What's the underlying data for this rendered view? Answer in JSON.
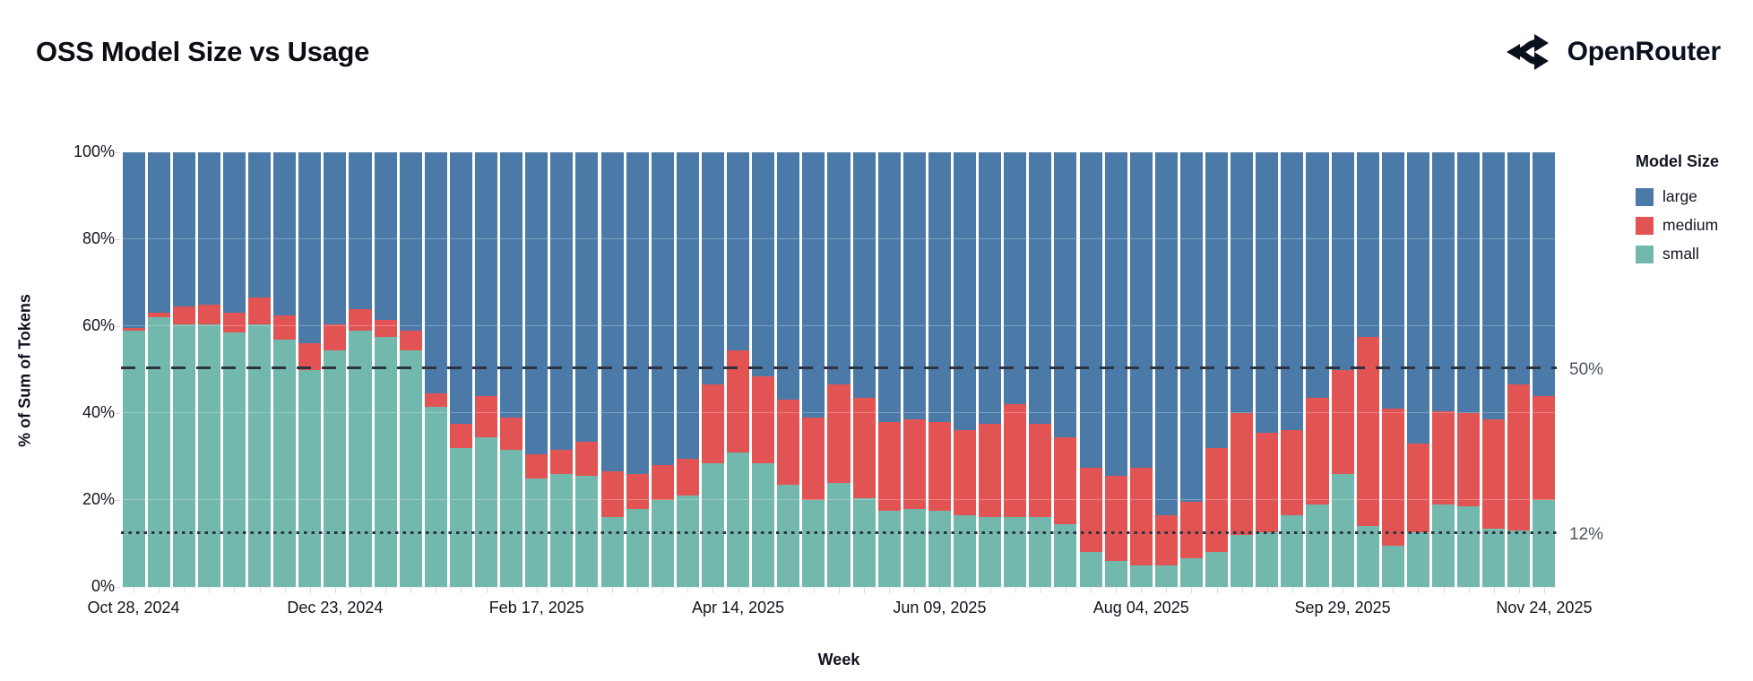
{
  "header": {
    "title": "OSS Model Size vs Usage",
    "brand": "OpenRouter",
    "brand_icon": "openrouter-fork-arrows-icon"
  },
  "chart_data": {
    "type": "bar",
    "stacked": true,
    "title": "OSS Model Size vs Usage",
    "xlabel": "Week",
    "ylabel": "% of Sum of Tokens",
    "ylim": [
      0,
      100
    ],
    "grid": "horizontal",
    "y_ticks": [
      "0%",
      "20%",
      "40%",
      "60%",
      "80%",
      "100%"
    ],
    "y_tick_values": [
      0,
      20,
      40,
      60,
      80,
      100
    ],
    "x_major_tick_indices": [
      0,
      8,
      16,
      24,
      32,
      40,
      48,
      56
    ],
    "x_major_tick_labels": [
      "Oct 28, 2024",
      "Dec 23, 2024",
      "Feb 17, 2025",
      "Apr 14, 2025",
      "Jun 09, 2025",
      "Aug 04, 2025",
      "Sep 29, 2025",
      "Nov 24, 2025"
    ],
    "legend_title": "Model Size",
    "legend_position": "right",
    "categories": [
      "Oct 28, 2024",
      "Nov 04, 2024",
      "Nov 11, 2024",
      "Nov 18, 2024",
      "Nov 25, 2024",
      "Dec 02, 2024",
      "Dec 09, 2024",
      "Dec 16, 2024",
      "Dec 23, 2024",
      "Dec 30, 2024",
      "Jan 06, 2025",
      "Jan 13, 2025",
      "Jan 20, 2025",
      "Jan 27, 2025",
      "Feb 03, 2025",
      "Feb 10, 2025",
      "Feb 17, 2025",
      "Feb 24, 2025",
      "Mar 03, 2025",
      "Mar 10, 2025",
      "Mar 17, 2025",
      "Mar 24, 2025",
      "Mar 31, 2025",
      "Apr 07, 2025",
      "Apr 14, 2025",
      "Apr 21, 2025",
      "Apr 28, 2025",
      "May 05, 2025",
      "May 12, 2025",
      "May 19, 2025",
      "May 26, 2025",
      "Jun 02, 2025",
      "Jun 09, 2025",
      "Jun 16, 2025",
      "Jun 23, 2025",
      "Jun 30, 2025",
      "Jul 07, 2025",
      "Jul 14, 2025",
      "Jul 21, 2025",
      "Jul 28, 2025",
      "Aug 04, 2025",
      "Aug 11, 2025",
      "Aug 18, 2025",
      "Aug 25, 2025",
      "Sep 01, 2025",
      "Sep 08, 2025",
      "Sep 15, 2025",
      "Sep 22, 2025",
      "Sep 29, 2025",
      "Oct 06, 2025",
      "Oct 13, 2025",
      "Oct 20, 2025",
      "Oct 27, 2025",
      "Nov 03, 2025",
      "Nov 10, 2025",
      "Nov 17, 2025",
      "Nov 24, 2025"
    ],
    "series": [
      {
        "name": "large",
        "color": "#4B7AA8",
        "values": [
          40.5,
          37,
          35.5,
          35,
          37,
          33.5,
          37.5,
          44,
          39.5,
          36,
          38.5,
          41,
          55.5,
          62.5,
          56,
          61,
          69.5,
          68.5,
          66.5,
          73.5,
          74,
          72,
          70.5,
          53.5,
          45.5,
          51.5,
          57,
          61,
          53.5,
          56.5,
          62,
          61.5,
          62,
          64,
          62.5,
          58,
          62.5,
          65.5,
          72.5,
          74.5,
          72.5,
          83.5,
          80.5,
          68,
          60,
          64.5,
          64,
          56.5,
          50,
          42.5,
          59,
          67,
          59.5,
          60,
          61.5,
          53.5,
          56
        ]
      },
      {
        "name": "medium",
        "color": "#E25453",
        "values": [
          0.5,
          1,
          4,
          4.5,
          4.5,
          6,
          5.5,
          6,
          6,
          5,
          4,
          4.5,
          3,
          5.5,
          9.5,
          7.5,
          5.5,
          5.5,
          8,
          10.5,
          8,
          8,
          8.5,
          18,
          23.5,
          20,
          19.5,
          19,
          22.5,
          23,
          20.5,
          20.5,
          20.5,
          19.5,
          21.5,
          26,
          21.5,
          20,
          19.5,
          19.5,
          22.5,
          11.5,
          13,
          24,
          28,
          23,
          19.5,
          24.5,
          24,
          43.5,
          31.5,
          20.5,
          21.5,
          21.5,
          25,
          33.5,
          24
        ]
      },
      {
        "name": "small",
        "color": "#73B8AC",
        "values": [
          59,
          62,
          60.5,
          60.5,
          58.5,
          60.5,
          57,
          50,
          54.5,
          59,
          57.5,
          54.5,
          41.5,
          32,
          34.5,
          31.5,
          25,
          26,
          25.5,
          16,
          18,
          20,
          21,
          28.5,
          31,
          28.5,
          23.5,
          20,
          24,
          20.5,
          17.5,
          18,
          17.5,
          16.5,
          16,
          16,
          16,
          14.5,
          8,
          6,
          5,
          5,
          6.5,
          8,
          12,
          12.5,
          16.5,
          19,
          26,
          14,
          9.5,
          12.5,
          19,
          18.5,
          13.5,
          13,
          20
        ]
      }
    ],
    "reference_lines": [
      {
        "value": 50,
        "style": "dashed",
        "label": "50%"
      },
      {
        "value": 12,
        "style": "dotted",
        "label": "12%"
      }
    ]
  }
}
